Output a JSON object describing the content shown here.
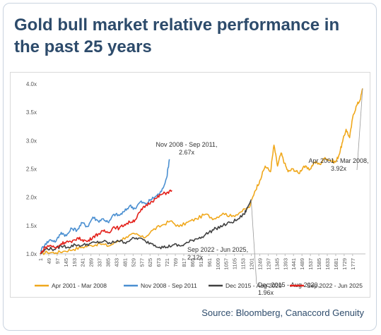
{
  "title": "Gold bull market relative performance in the past 25 years",
  "source": "Source: Bloomberg, Canaccord Genuity",
  "chart_data": {
    "type": "line",
    "title": "",
    "xlabel": "",
    "ylabel": "",
    "xlim": [
      1,
      1850
    ],
    "ylim": [
      1.0,
      4.0
    ],
    "y_ticks": [
      "1.0x",
      "1.5x",
      "2.0x",
      "2.5x",
      "3.0x",
      "3.5x",
      "4.0x"
    ],
    "x_ticks": [
      "1",
      "49",
      "97",
      "145",
      "193",
      "241",
      "289",
      "337",
      "385",
      "433",
      "481",
      "529",
      "577",
      "625",
      "673",
      "721",
      "769",
      "817",
      "865",
      "913",
      "961",
      "1009",
      "1057",
      "1105",
      "1153",
      "1201",
      "1249",
      "1297",
      "1345",
      "1393",
      "1441",
      "1489",
      "1537",
      "1585",
      "1633",
      "1681",
      "1729",
      "1777"
    ],
    "grid": false,
    "legend_position": "bottom",
    "series": [
      {
        "name": "Apr 2001 - Mar 2008",
        "color": "#f0a81c",
        "x": [
          1,
          40,
          90,
          140,
          190,
          240,
          290,
          340,
          390,
          440,
          490,
          540,
          590,
          640,
          690,
          740,
          790,
          840,
          890,
          940,
          990,
          1040,
          1090,
          1140,
          1190,
          1220,
          1250,
          1280,
          1310,
          1330,
          1350,
          1370,
          1390,
          1410,
          1440,
          1470,
          1500,
          1530,
          1560,
          1590,
          1620,
          1650,
          1680,
          1700,
          1720,
          1740,
          1760,
          1780,
          1800,
          1820,
          1834
        ],
        "y": [
          1.0,
          1.03,
          1.02,
          1.05,
          1.08,
          1.12,
          1.15,
          1.18,
          1.14,
          1.22,
          1.3,
          1.35,
          1.28,
          1.42,
          1.5,
          1.58,
          1.48,
          1.56,
          1.62,
          1.7,
          1.62,
          1.72,
          1.66,
          1.74,
          1.82,
          2.1,
          2.3,
          2.55,
          2.45,
          2.92,
          2.55,
          2.78,
          2.6,
          2.45,
          2.5,
          2.42,
          2.55,
          2.48,
          2.62,
          2.58,
          2.7,
          2.65,
          2.62,
          2.75,
          2.98,
          3.2,
          3.05,
          3.45,
          3.62,
          3.72,
          3.92
        ],
        "label": "Apr 2001 - Mar 2008,\n3.92x"
      },
      {
        "name": "Nov 2008 - Sep 2011",
        "color": "#4a8fd1",
        "x": [
          1,
          30,
          60,
          90,
          120,
          150,
          180,
          210,
          240,
          270,
          300,
          330,
          360,
          390,
          420,
          450,
          480,
          510,
          540,
          570,
          600,
          630,
          660,
          690,
          720,
          735
        ],
        "y": [
          1.05,
          1.18,
          1.25,
          1.22,
          1.38,
          1.32,
          1.45,
          1.42,
          1.55,
          1.48,
          1.65,
          1.58,
          1.62,
          1.55,
          1.7,
          1.68,
          1.75,
          1.85,
          1.8,
          1.92,
          1.88,
          1.96,
          2.02,
          2.1,
          2.35,
          2.67
        ],
        "label": "Nov 2008 - Sep 2011,\n2.67x"
      },
      {
        "name": "Dec 2015 - Aug 2020",
        "color": "#404040",
        "x": [
          1,
          40,
          80,
          120,
          160,
          200,
          240,
          280,
          320,
          360,
          400,
          440,
          480,
          520,
          560,
          600,
          640,
          680,
          720,
          760,
          800,
          840,
          880,
          920,
          960,
          1000,
          1040,
          1080,
          1120,
          1160,
          1180,
          1200
        ],
        "y": [
          1.0,
          1.1,
          1.08,
          1.14,
          1.12,
          1.16,
          1.15,
          1.18,
          1.2,
          1.22,
          1.18,
          1.24,
          1.2,
          1.26,
          1.28,
          1.22,
          1.18,
          1.12,
          1.12,
          1.16,
          1.14,
          1.2,
          1.26,
          1.3,
          1.38,
          1.45,
          1.5,
          1.55,
          1.6,
          1.7,
          1.82,
          1.96
        ],
        "label": "Dec 2015 - Aug 2020,\n1.96x"
      },
      {
        "name": "Sep 2022 - Jun 2025",
        "color": "#e3211b",
        "x": [
          1,
          30,
          60,
          90,
          120,
          150,
          180,
          210,
          240,
          270,
          300,
          330,
          360,
          390,
          420,
          450,
          480,
          510,
          540,
          570,
          600,
          630,
          660,
          690,
          720,
          750
        ],
        "y": [
          1.0,
          1.12,
          1.15,
          1.1,
          1.18,
          1.22,
          1.2,
          1.28,
          1.25,
          1.22,
          1.3,
          1.35,
          1.4,
          1.38,
          1.48,
          1.45,
          1.52,
          1.56,
          1.6,
          1.75,
          1.85,
          1.92,
          1.98,
          2.05,
          2.08,
          2.12
        ],
        "label": "Sep 2022 - Jun 2025,\n2.12x"
      }
    ]
  }
}
